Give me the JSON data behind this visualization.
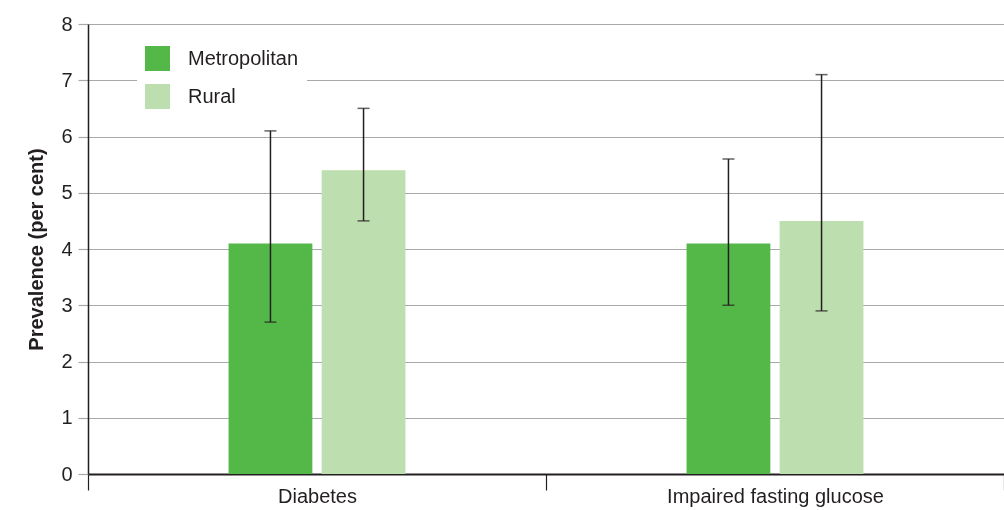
{
  "chart_data": {
    "type": "bar",
    "ylabel": "Prevalence (per cent)",
    "categories": [
      "Diabetes",
      "Impaired fasting glucose"
    ],
    "series": [
      {
        "name": "Metropolitan",
        "color": "#53b848",
        "values": [
          4.1,
          4.1
        ],
        "errors": [
          [
            2.7,
            6.1
          ],
          [
            3.0,
            5.6
          ]
        ]
      },
      {
        "name": "Rural",
        "color": "#bddeae",
        "values": [
          5.4,
          4.5
        ],
        "errors": [
          [
            4.5,
            6.5
          ],
          [
            2.9,
            7.1
          ]
        ]
      }
    ],
    "ylim": [
      0,
      8
    ],
    "yticks": [
      0,
      1,
      2,
      3,
      4,
      5,
      6,
      7,
      8
    ],
    "grid": "y",
    "legend": "top left"
  }
}
